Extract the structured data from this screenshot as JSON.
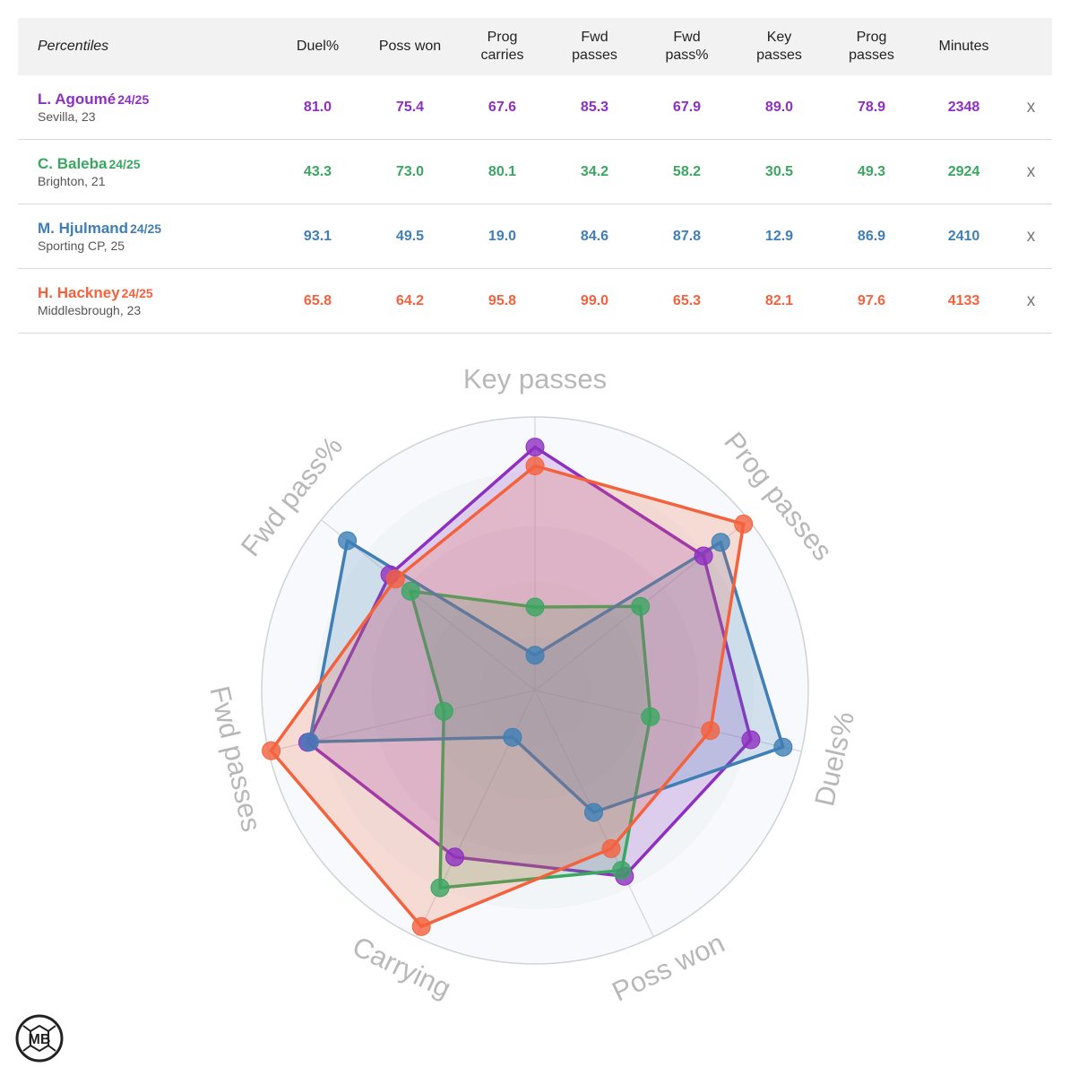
{
  "table": {
    "header_label": "Percentiles",
    "columns": [
      "Duel%",
      "Poss won",
      "Prog carries",
      "Fwd passes",
      "Fwd pass%",
      "Key passes",
      "Prog passes",
      "Minutes"
    ],
    "remove_label": "x",
    "players": [
      {
        "name": "L. Agoumé",
        "season": "24/25",
        "club": "Sevilla, 23",
        "color": "#8e2fc1",
        "values": [
          "81.0",
          "75.4",
          "67.6",
          "85.3",
          "67.9",
          "89.0",
          "78.9",
          "2348"
        ]
      },
      {
        "name": "C. Baleba",
        "season": "24/25",
        "club": "Brighton, 21",
        "color": "#3aa661",
        "values": [
          "43.3",
          "73.0",
          "80.1",
          "34.2",
          "58.2",
          "30.5",
          "49.3",
          "2924"
        ]
      },
      {
        "name": "M. Hjulmand",
        "season": "24/25",
        "club": "Sporting CP, 25",
        "color": "#3f7fb5",
        "values": [
          "93.1",
          "49.5",
          "19.0",
          "84.6",
          "87.8",
          "12.9",
          "86.9",
          "2410"
        ]
      },
      {
        "name": "H. Hackney",
        "season": "24/25",
        "club": "Middlesbrough, 23",
        "color": "#f4623d",
        "values": [
          "65.8",
          "64.2",
          "95.8",
          "99.0",
          "65.3",
          "82.1",
          "97.6",
          "4133"
        ]
      }
    ]
  },
  "chart_data": {
    "type": "radar",
    "axes": [
      "Key passes",
      "Prog passes",
      "Duels%",
      "Poss won",
      "Carrying",
      "Fwd passes",
      "Fwd pass%"
    ],
    "range": [
      0,
      100
    ],
    "series": [
      {
        "name": "L. Agoumé",
        "color": "#8e2fc1",
        "values": [
          89.0,
          78.9,
          81.0,
          75.4,
          67.6,
          85.3,
          67.9
        ]
      },
      {
        "name": "C. Baleba",
        "color": "#3aa661",
        "values": [
          30.5,
          49.3,
          43.3,
          73.0,
          80.1,
          34.2,
          58.2
        ]
      },
      {
        "name": "M. Hjulmand",
        "color": "#3f7fb5",
        "values": [
          12.9,
          86.9,
          93.1,
          49.5,
          19.0,
          84.6,
          87.8
        ]
      },
      {
        "name": "H. Hackney",
        "color": "#f4623d",
        "values": [
          82.1,
          97.6,
          65.8,
          64.2,
          95.8,
          99.0,
          65.3
        ]
      }
    ]
  },
  "logo": {
    "text": "MB"
  }
}
